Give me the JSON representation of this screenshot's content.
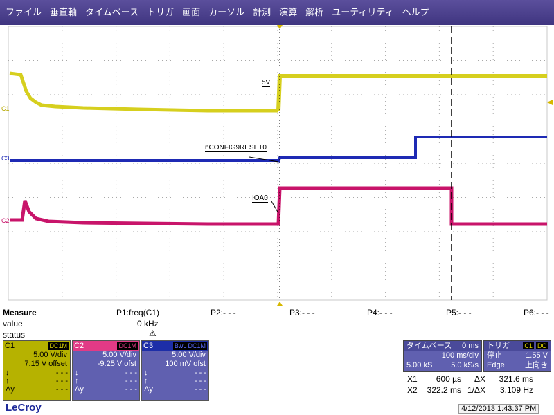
{
  "menu": [
    "ファイル",
    "垂直軸",
    "タイムベース",
    "トリガ",
    "画面",
    "カーソル",
    "計測",
    "演算",
    "解析",
    "ユーティリティ",
    "ヘルプ"
  ],
  "scope": {
    "trace_labels": {
      "c1": "5V",
      "c3": "nCONFIG9RESET0",
      "c2": "IOA0"
    },
    "channel_markers": {
      "c1": "C1",
      "c3": "C3",
      "c2": "C2"
    },
    "colors": {
      "c1": "#d6cf1e",
      "c2": "#c8146a",
      "c3": "#1e2ab4",
      "grid": "#a8a8a8",
      "trigger_marker": "#d6b800"
    }
  },
  "measure": {
    "title": "Measure",
    "row_value": "value",
    "row_status": "status",
    "params": [
      "P1:freq(C1)",
      "P2:- - -",
      "P3:- - -",
      "P4:- - -",
      "P5:- - -",
      "P6:- - -"
    ],
    "p1_value": "0 kHz",
    "warning_icon": "warning-icon"
  },
  "channels": [
    {
      "name": "C1",
      "coupling": "DC1M",
      "vdiv": "5.00 V/div",
      "offset": "7.15 V offset",
      "stat1": "- - -",
      "stat2": "- - -",
      "stat3": "- - -"
    },
    {
      "name": "C2",
      "coupling": "DC1M",
      "vdiv": "5.00 V/div",
      "offset": "-9.25 V ofst",
      "stat1": "- - -",
      "stat2": "- - -",
      "stat3": "- - -"
    },
    {
      "name": "C3",
      "coupling": "BwL DC1M",
      "vdiv": "5.00 V/div",
      "offset": "100 mV ofst",
      "stat1": "- - -",
      "stat2": "- - -",
      "stat3": "- - -"
    }
  ],
  "stat_labels": [
    "↓",
    "↑",
    "Δy"
  ],
  "timebase": {
    "label": "タイムベース",
    "delay": "0 ms",
    "tdiv": "100 ms/div",
    "samples": "5.00 kS",
    "rate": "5.0 kS/s"
  },
  "trigger": {
    "label": "トリガ",
    "channel": "C1",
    "coupling": "DC",
    "state": "停止",
    "level": "1.55 V",
    "type": "Edge",
    "slope": "上向き"
  },
  "cursors": {
    "x1_label": "X1=",
    "x1": "600 µs",
    "dx_label": "ΔX=",
    "dx": "321.6 ms",
    "x2_label": "X2=",
    "x2": "322.2 ms",
    "inv_label": "1/ΔX=",
    "inv": "3.109 Hz"
  },
  "footer": {
    "brand": "LeCroy",
    "timestamp": "4/12/2013 1:43:37 PM"
  }
}
